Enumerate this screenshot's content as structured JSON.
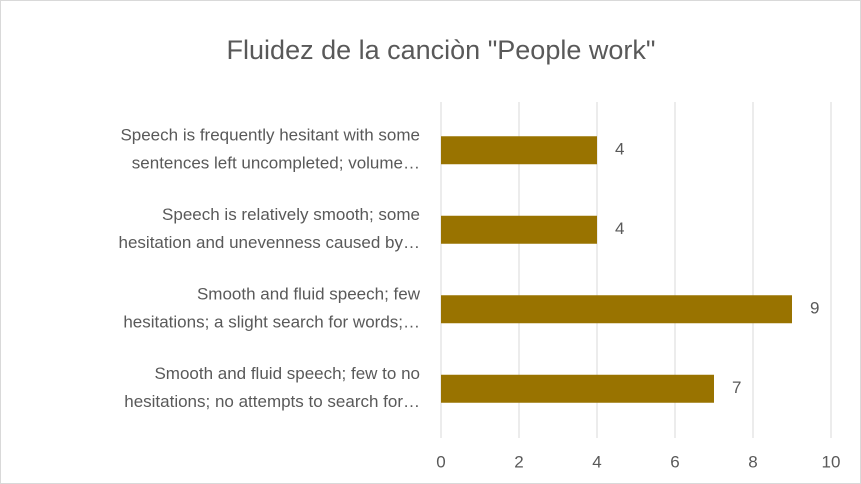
{
  "chart_data": {
    "type": "bar",
    "orientation": "horizontal",
    "title": "Fluidez de la canciòn \"People work\"",
    "categories": [
      "Speech is frequently hesitant with some\nsentences left uncompleted; volume…",
      "Speech is relatively smooth; some\nhesitation and unevenness caused by…",
      "Smooth and fluid speech; few\nhesitations; a slight search for words;…",
      "Smooth and fluid speech; few to no\nhesitations; no attempts to search for…"
    ],
    "values": [
      4,
      4,
      9,
      7
    ],
    "color": "#997300",
    "xlim": [
      0,
      10
    ],
    "xticks": [
      0,
      2,
      4,
      6,
      8,
      10
    ],
    "grid": true
  }
}
